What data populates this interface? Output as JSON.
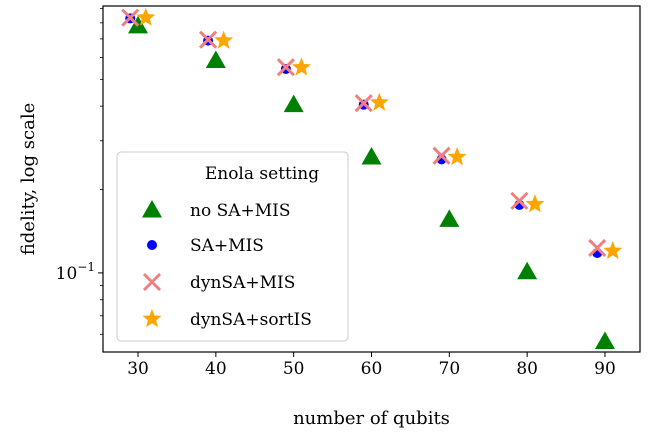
{
  "chart_data": {
    "type": "scatter",
    "xlabel": "number of qubits",
    "ylabel": "fidelity, log scale",
    "yscale": "log",
    "xlim": [
      25.5,
      94.5
    ],
    "ylim": [
      0.0518,
      0.92
    ],
    "x_ticks": [
      30,
      40,
      50,
      60,
      70,
      80,
      90
    ],
    "x_tick_labels": [
      "30",
      "40",
      "50",
      "60",
      "70",
      "80",
      "90"
    ],
    "y_major_tick": {
      "value": 0.1,
      "base": "10",
      "exponent": "−1"
    },
    "y_minor_ticks": [
      0.06,
      0.07,
      0.08,
      0.09,
      0.2,
      0.3,
      0.4,
      0.5,
      0.6,
      0.7,
      0.8,
      0.9
    ],
    "grid": false,
    "legend": {
      "title": "Enola setting",
      "placement": "lower-left"
    },
    "series": [
      {
        "name": "no SA+MIS",
        "marker": "triangle",
        "color": "#008000",
        "x": [
          30,
          40,
          50,
          60,
          70,
          80,
          90
        ],
        "y": [
          0.78,
          0.585,
          0.405,
          0.262,
          0.156,
          0.101,
          0.0565
        ]
      },
      {
        "name": "SA+MIS",
        "marker": "dot",
        "color": "#0000ff",
        "x": [
          29,
          39,
          49,
          59,
          69,
          79,
          89
        ],
        "y": [
          0.83,
          0.69,
          0.545,
          0.405,
          0.257,
          0.176,
          0.118
        ]
      },
      {
        "name": "dynSA+MIS",
        "marker": "x",
        "color": "#f08080",
        "x": [
          29,
          39,
          49,
          59,
          69,
          79,
          89
        ],
        "y": [
          0.835,
          0.695,
          0.553,
          0.41,
          0.265,
          0.182,
          0.123
        ]
      },
      {
        "name": "dynSA+sortIS",
        "marker": "star",
        "color": "#ffa500",
        "x": [
          31,
          41,
          51,
          61,
          71,
          81,
          91
        ],
        "y": [
          0.835,
          0.69,
          0.552,
          0.412,
          0.262,
          0.177,
          0.12
        ]
      }
    ]
  }
}
